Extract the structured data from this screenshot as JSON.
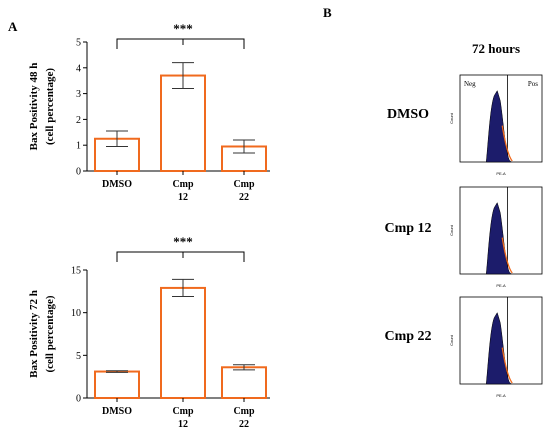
{
  "panels": {
    "a": "A",
    "b": "B"
  },
  "chart_data": [
    {
      "type": "bar",
      "categories": [
        "DMSO",
        "Cmp 12",
        "Cmp 22"
      ],
      "category_lines": [
        [
          "DMSO"
        ],
        [
          "Cmp",
          "12"
        ],
        [
          "Cmp",
          "22"
        ]
      ],
      "values": [
        1.25,
        3.7,
        0.95
      ],
      "errors": [
        0.3,
        0.5,
        0.25
      ],
      "ylabel_lines": [
        "Bax Positivity 48 h",
        "(cell percentage)"
      ],
      "ylim": [
        0,
        5
      ],
      "yticks": [
        0,
        1,
        2,
        3,
        4,
        5
      ],
      "significance": "***",
      "bar_color": "#f06a1e"
    },
    {
      "type": "bar",
      "categories": [
        "DMSO",
        "Cmp 12",
        "Cmp 22"
      ],
      "category_lines": [
        [
          "DMSO"
        ],
        [
          "Cmp",
          "12"
        ],
        [
          "Cmp",
          "22"
        ]
      ],
      "values": [
        3.1,
        12.9,
        3.6
      ],
      "errors": [
        0.1,
        1.0,
        0.3
      ],
      "ylabel_lines": [
        "Bax Positivity 72 h",
        "(cell percentage)"
      ],
      "ylim": [
        0,
        15
      ],
      "yticks": [
        0,
        5,
        10,
        15
      ],
      "significance": "***",
      "bar_color": "#f06a1e"
    }
  ],
  "flow": {
    "title": "72 hours",
    "rows": [
      "DMSO",
      "Cmp 12",
      "Cmp 22"
    ],
    "gate_neg": "Neg",
    "gate_pos": "Pos",
    "y_axis_label": "Count",
    "x_axis_label": "PE-A",
    "fill_color": "#1c1c6b",
    "edge_color": "#f06a1e"
  }
}
